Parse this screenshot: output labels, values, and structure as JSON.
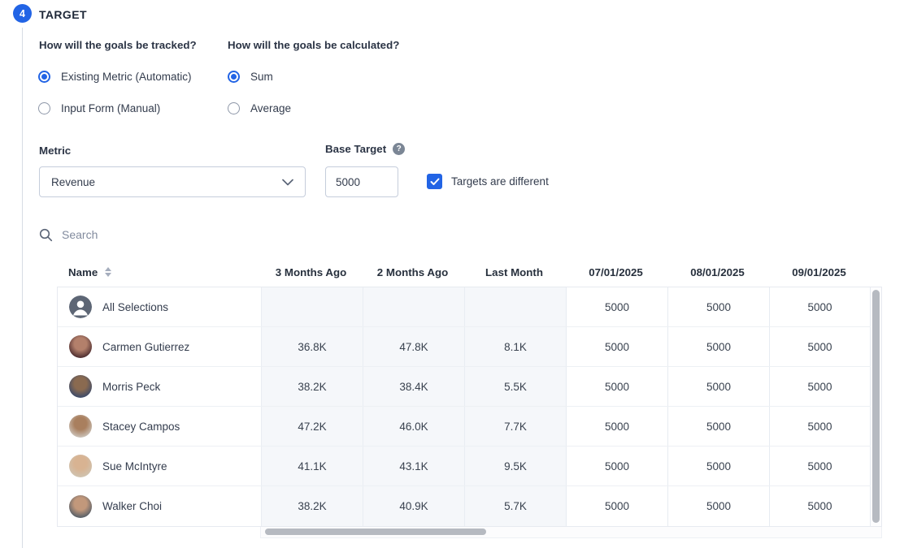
{
  "step": {
    "number": "4",
    "title": "TARGET"
  },
  "questions": {
    "tracked": {
      "label": "How will the goals be tracked?",
      "options": [
        {
          "label": "Existing Metric (Automatic)",
          "selected": true
        },
        {
          "label": "Input Form (Manual)",
          "selected": false
        }
      ]
    },
    "calculated": {
      "label": "How will the goals be calculated?",
      "options": [
        {
          "label": "Sum",
          "selected": true
        },
        {
          "label": "Average",
          "selected": false
        }
      ]
    }
  },
  "metric": {
    "label": "Metric",
    "value": "Revenue"
  },
  "base_target": {
    "label": "Base Target",
    "value": "5000",
    "help_glyph": "?"
  },
  "targets_checkbox": {
    "label": "Targets are different",
    "checked": true
  },
  "search": {
    "placeholder": "Search"
  },
  "table": {
    "columns": [
      "Name",
      "3 Months Ago",
      "2 Months Ago",
      "Last Month",
      "07/01/2025",
      "08/01/2025",
      "09/01/2025"
    ],
    "rows": [
      {
        "name": "All Selections",
        "avatar": "group-icon",
        "avatar_colors": [
          "#5d6675",
          "#5d6675"
        ],
        "values": [
          "",
          "",
          "",
          "5000",
          "5000",
          "5000"
        ]
      },
      {
        "name": "Carmen Gutierrez",
        "avatar": "photo",
        "avatar_colors": [
          "#b3806b",
          "#45262b"
        ],
        "values": [
          "36.8K",
          "47.8K",
          "8.1K",
          "5000",
          "5000",
          "5000"
        ]
      },
      {
        "name": "Morris Peck",
        "avatar": "photo",
        "avatar_colors": [
          "#8a6a50",
          "#36486b"
        ],
        "values": [
          "38.2K",
          "38.4K",
          "5.5K",
          "5000",
          "5000",
          "5000"
        ]
      },
      {
        "name": "Stacey Campos",
        "avatar": "photo",
        "avatar_colors": [
          "#a97f5e",
          "#cdc6be"
        ],
        "values": [
          "47.2K",
          "46.0K",
          "7.7K",
          "5000",
          "5000",
          "5000"
        ]
      },
      {
        "name": "Sue McIntyre",
        "avatar": "photo",
        "avatar_colors": [
          "#d8b392",
          "#cfc4b2"
        ],
        "values": [
          "41.1K",
          "43.1K",
          "9.5K",
          "5000",
          "5000",
          "5000"
        ]
      },
      {
        "name": "Walker Choi",
        "avatar": "photo",
        "avatar_colors": [
          "#c2987b",
          "#4e5a66"
        ],
        "values": [
          "38.2K",
          "40.9K",
          "5.7K",
          "5000",
          "5000",
          "5000"
        ]
      }
    ]
  },
  "colors": {
    "accent": "#2264e5",
    "header_text": "#27303d",
    "body_text": "#333c4d",
    "muted_text": "#828b9e",
    "input_border": "#c5cddb",
    "table_border": "#e7ebf1",
    "history_column_bg": "#f5f7fa",
    "scrollbar": "#b6bac1"
  }
}
